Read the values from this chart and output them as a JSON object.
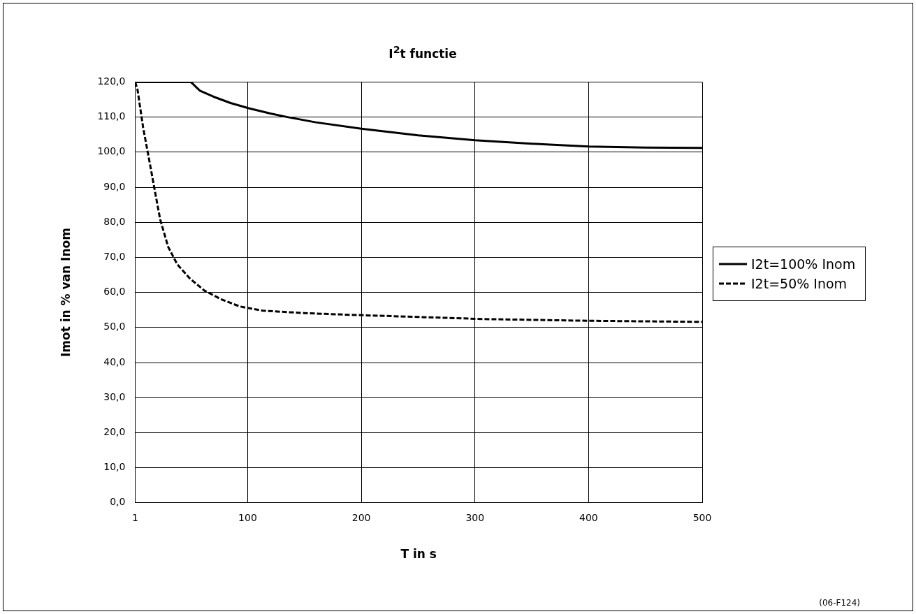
{
  "chart_data": {
    "type": "line",
    "title": "I$^{2}$t functie",
    "xlabel": "T in s",
    "ylabel": "Imot in % van Inom",
    "xlim": [
      1,
      500
    ],
    "xticks": [
      1,
      100,
      200,
      300,
      400,
      500
    ],
    "ylim": [
      0,
      120
    ],
    "yticks": [
      {
        "value": 0,
        "label": "0,0"
      },
      {
        "value": 10,
        "label": "10,0"
      },
      {
        "value": 20,
        "label": "20,0"
      },
      {
        "value": 30,
        "label": "30,0"
      },
      {
        "value": 40,
        "label": "40,0"
      },
      {
        "value": 50,
        "label": "50,0"
      },
      {
        "value": 60,
        "label": "60,0"
      },
      {
        "value": 70,
        "label": "70,0"
      },
      {
        "value": 80,
        "label": "80,0"
      },
      {
        "value": 90,
        "label": "90,0"
      },
      {
        "value": 100,
        "label": "100,0"
      },
      {
        "value": 110,
        "label": "110,0"
      },
      {
        "value": 120,
        "label": "120,0"
      }
    ],
    "grid": true,
    "legend": "right",
    "marker": "none",
    "series": [
      {
        "name": "I2t=100% Inom",
        "color": "#000000",
        "line_style": "solid",
        "x": [
          1,
          50,
          58,
          70,
          85,
          101,
          120,
          135,
          160,
          200,
          250,
          300,
          350,
          400,
          450,
          500
        ],
        "values": [
          120,
          120,
          117.5,
          115.8,
          114,
          112.5,
          111,
          110,
          108.5,
          106.7,
          104.8,
          103.4,
          102.4,
          101.6,
          101.3,
          101.2
        ]
      },
      {
        "name": "I2t=50% Inom",
        "color": "#000000",
        "line_style": "dashed",
        "x": [
          1,
          3,
          8,
          14,
          20,
          23,
          30,
          38,
          49,
          62,
          77,
          93,
          113,
          150,
          190,
          250,
          307,
          400,
          500
        ],
        "values": [
          120,
          117.9,
          107,
          96.6,
          86,
          80.8,
          73,
          68,
          64,
          60.5,
          58,
          56,
          54.8,
          54.1,
          53.6,
          53,
          52.4,
          51.9,
          51.6
        ]
      }
    ],
    "annotations": [
      "(06-F124)"
    ]
  }
}
